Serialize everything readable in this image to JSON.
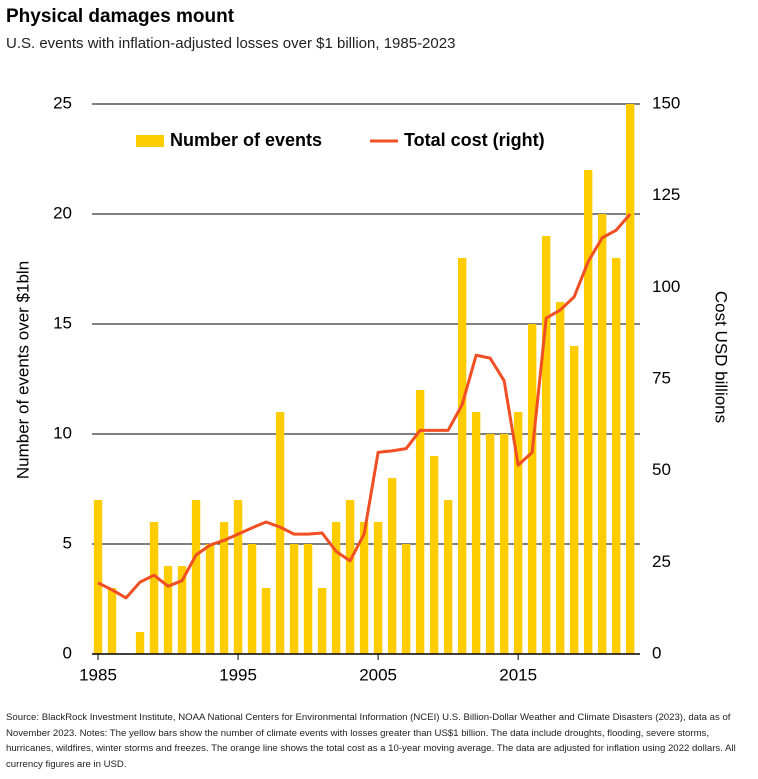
{
  "chart_data": {
    "type": "bar_line",
    "title": "Physical damages mount",
    "subtitle": "U.S. events with inflation-adjusted losses over $1 billion, 1985-2023",
    "y_label": "Number of events over $1bln",
    "y2_label": "Cost USD billions",
    "x": [
      1985,
      1986,
      1987,
      1988,
      1989,
      1990,
      1991,
      1992,
      1993,
      1994,
      1995,
      1996,
      1997,
      1998,
      1999,
      2000,
      2001,
      2002,
      2003,
      2004,
      2005,
      2006,
      2007,
      2008,
      2009,
      2010,
      2011,
      2012,
      2013,
      2014,
      2015,
      2016,
      2017,
      2018,
      2019,
      2020,
      2021,
      2022,
      2023
    ],
    "series": [
      {
        "name": "Number of events",
        "color": "#ffcc00",
        "kind": "bar",
        "values": [
          7,
          3,
          0,
          1,
          6,
          4,
          4,
          7,
          5,
          6,
          7,
          5,
          3,
          11,
          5,
          5,
          3,
          6,
          7,
          6,
          6,
          8,
          5,
          12,
          9,
          7,
          18,
          11,
          10,
          10,
          11,
          15,
          19,
          16,
          14,
          22,
          20,
          18,
          25
        ]
      },
      {
        "name": "Total cost (right)",
        "color": "#f04e23",
        "kind": "line",
        "axis": "y2",
        "values": [
          19.4,
          17.5,
          15.3,
          19.6,
          21.5,
          18.5,
          20,
          27,
          29.7,
          31,
          32.7,
          34.4,
          36,
          34.6,
          32.7,
          32.7,
          33,
          28,
          25.4,
          32.7,
          55,
          55.4,
          56,
          61,
          61,
          61,
          68,
          81.5,
          80.7,
          74.5,
          51.5,
          55,
          91.6,
          93.8,
          97.4,
          107,
          113.5,
          115.6,
          120
        ]
      }
    ],
    "xlim": [
      1984.57,
      2023.7
    ],
    "xticks": [
      1985,
      1995,
      2005,
      2015
    ],
    "ylim": [
      0,
      25
    ],
    "yticks": [
      0,
      5,
      10,
      15,
      20,
      25
    ],
    "y2lim": [
      0,
      150
    ],
    "y2ticks": [
      0,
      25,
      50,
      75,
      100,
      125,
      150
    ],
    "grid": true,
    "legend": "top-left",
    "note": "Source: BlackRock Investment Institute, NOAA National Centers for Environmental Information (NCEI) U.S. Billion-Dollar Weather and Climate Disasters (2023), data as of November 2023. Notes: The yellow bars show the number of climate events with losses greater than US$1 billion. The data include droughts, flooding, severe storms, hurricanes, wildfires, winter storms and freezes. The orange line shows the total cost as a 10-year moving average. The data are adjusted for inflation using 2022 dollars. All currency figures are in USD."
  }
}
